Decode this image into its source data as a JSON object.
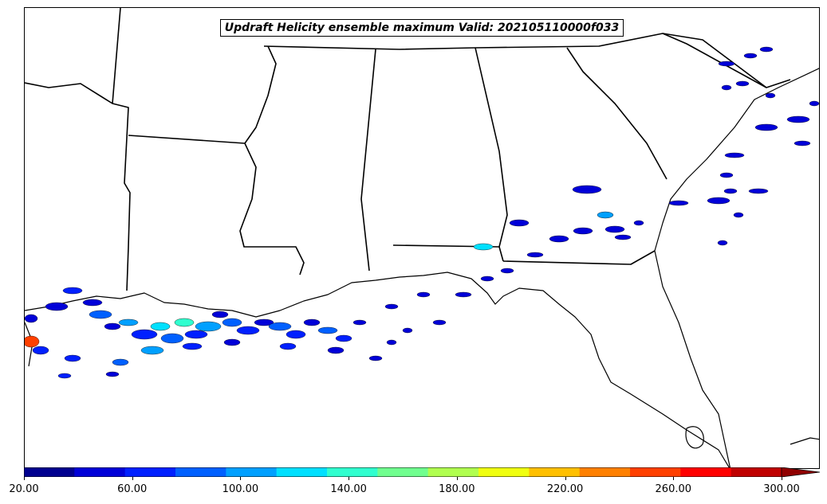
{
  "map": {
    "title": "Updraft Helicity ensemble maximum Valid: 202105110000f033",
    "field": "Updraft Helicity ensemble maximum",
    "valid": "202105110000f033",
    "region": "Southeastern United States and Gulf of Mexico",
    "land_color": "#ffffff",
    "boundary_color": "#000000"
  },
  "colorbar": {
    "min": 20,
    "max": 300,
    "step": 20,
    "extend": "max",
    "colors": [
      "#00008f",
      "#0000d8",
      "#0020ff",
      "#0060ff",
      "#00a0ff",
      "#00e0ff",
      "#30ffcf",
      "#70ff8f",
      "#b0ff4f",
      "#f0ff0f",
      "#ffc000",
      "#ff8000",
      "#ff4000",
      "#ff0000",
      "#c00000",
      "#900000"
    ],
    "tick_labels": [
      "20.00",
      "60.00",
      "100.00",
      "140.00",
      "180.00",
      "220.00",
      "260.00",
      "300.00"
    ]
  }
}
